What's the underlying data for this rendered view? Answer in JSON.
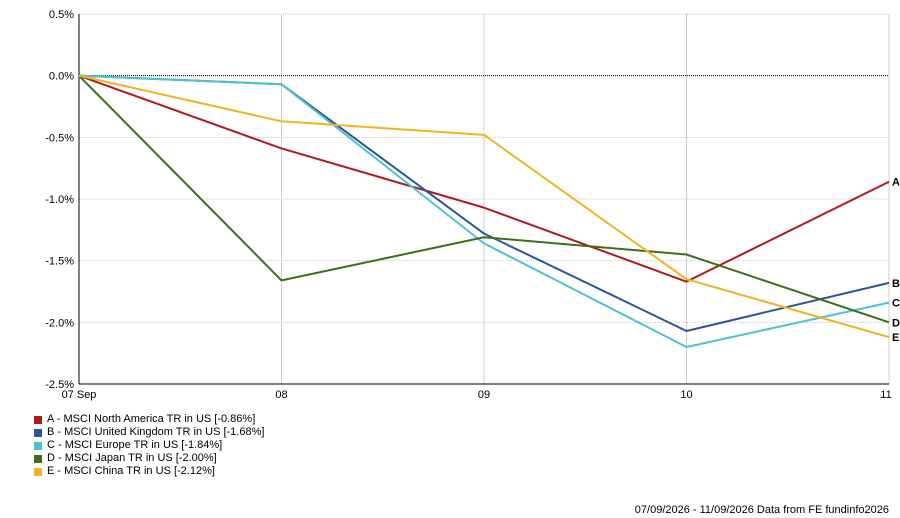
{
  "chart_data": {
    "type": "line",
    "categories": [
      "07 Sep",
      "08",
      "09",
      "10",
      "11"
    ],
    "ylim": [
      -2.5,
      0.5
    ],
    "yticks": [
      0.5,
      0,
      -0.5,
      -1,
      -1.5,
      -2,
      -2.5
    ],
    "ytick_labels": [
      "0.5%",
      "0.0%",
      "-0.5%",
      "-1.0%",
      "-1.5%",
      "-2.0%",
      "-2.5%"
    ],
    "grid": true,
    "legend_position": "bottom-left",
    "series": [
      {
        "letter": "A",
        "name": "A - MSCI North America TR in US [-0.86%]",
        "color": "#b0191e",
        "values": [
          0,
          -0.59,
          -1.07,
          -1.67,
          -0.86
        ]
      },
      {
        "letter": "B",
        "name": "B - MSCI United Kingdom TR in US [-1.68%]",
        "color": "#2a5696",
        "values": [
          0,
          -0.07,
          -1.28,
          -2.07,
          -1.68
        ]
      },
      {
        "letter": "C",
        "name": "C - MSCI Europe TR in US [-1.84%]",
        "color": "#4ec3cc",
        "values": [
          0,
          -0.07,
          -1.36,
          -2.2,
          -1.84
        ]
      },
      {
        "letter": "D",
        "name": "D - MSCI Japan TR in US [-2.00%]",
        "color": "#3d6e1c",
        "values": [
          0,
          -1.66,
          -1.31,
          -1.45,
          -2.0
        ]
      },
      {
        "letter": "E",
        "name": "E - MSCI China TR in US [-2.12%]",
        "color": "#f0b323",
        "values": [
          0,
          -0.37,
          -0.48,
          -1.65,
          -2.12
        ]
      }
    ]
  },
  "footer": {
    "text": "07/09/2026 - 11/09/2026 Data from FE fundinfo2026"
  }
}
